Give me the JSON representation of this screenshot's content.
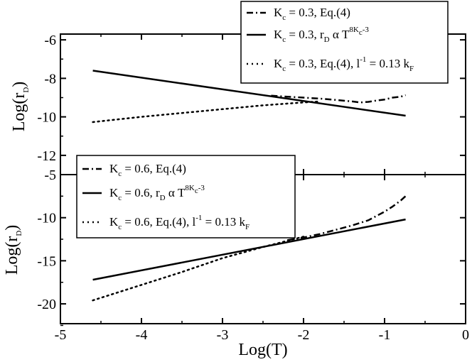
{
  "chart_data": [
    {
      "type": "line",
      "panel": "top",
      "ylabel": "Log(r_D)",
      "ylabel_parts": {
        "main": "Log(r",
        "sub": "D",
        "close": ")"
      },
      "xlim": [
        -5,
        0
      ],
      "ylim": [
        -13,
        -5.7
      ],
      "yticks": [
        -6,
        -8,
        -10,
        -12
      ],
      "ytick_labels": [
        "-6",
        "-8",
        "-10",
        "-12"
      ],
      "legend_position": "top-right",
      "series": [
        {
          "name": "K_c = 0.3, Eq.(4)",
          "legend_parts": {
            "a": "K",
            "a_sub": "c",
            "b": " = 0.3, Eq.(4)"
          },
          "style": "dash-dot",
          "x": [
            -2.4,
            -2.2,
            -2.0,
            -1.8,
            -1.6,
            -1.4,
            -1.3,
            -1.2,
            -1.1,
            -1.0,
            -0.9,
            -0.8,
            -0.74
          ],
          "y": [
            -8.9,
            -8.95,
            -9.0,
            -9.05,
            -9.12,
            -9.2,
            -9.25,
            -9.22,
            -9.15,
            -9.1,
            -9.0,
            -8.95,
            -8.87
          ]
        },
        {
          "name": "K_c = 0.3, r_D α T^(8K_c-3)",
          "legend_parts": {
            "a": "K",
            "a_sub": "c",
            "b": " = 0.3, r",
            "b_sub": "D",
            "c": " α T",
            "sup_a": "8K",
            "sup_sub": "c",
            "sup_b": "-3"
          },
          "style": "solid",
          "x": [
            -4.6,
            -0.74
          ],
          "y": [
            -7.6,
            -9.94
          ]
        },
        {
          "name": "K_c = 0.3, Eq.(4), l^-1 = 0.13 k_F",
          "legend_parts": {
            "a": "K",
            "a_sub": "c",
            "b": " = 0.3, Eq.(4), l",
            "sup": "-1",
            "c": " = 0.13 k",
            "c_sub": "F"
          },
          "style": "dotted",
          "x": [
            -4.6,
            -4.0,
            -3.5,
            -3.0,
            -2.5,
            -2.0,
            -1.8
          ],
          "y": [
            -10.27,
            -10.0,
            -9.8,
            -9.6,
            -9.4,
            -9.25,
            -9.2
          ]
        }
      ]
    },
    {
      "type": "line",
      "panel": "bottom",
      "xlabel": "Log(T)",
      "ylabel": "Log(r_D)",
      "ylabel_parts": {
        "main": "Log(r",
        "sub": "D",
        "close": ")"
      },
      "xlim": [
        -5,
        0
      ],
      "ylim": [
        -22.3,
        -5
      ],
      "xticks": [
        -5,
        -4,
        -3,
        -2,
        -1,
        0
      ],
      "xtick_labels": [
        "-5",
        "-4",
        "-3",
        "-2",
        "-1",
        "0"
      ],
      "yticks": [
        -5,
        -10,
        -15,
        -20
      ],
      "ytick_labels": [
        "-5",
        "-10",
        "-15",
        "-20"
      ],
      "legend_position": "top-left",
      "series": [
        {
          "name": "K_c = 0.6, Eq.(4)",
          "legend_parts": {
            "a": "K",
            "a_sub": "c",
            "b": " = 0.6, Eq.(4)"
          },
          "style": "dash-dot",
          "x": [
            -2.2,
            -2.0,
            -1.8,
            -1.6,
            -1.4,
            -1.2,
            -1.0,
            -0.9,
            -0.8,
            -0.74
          ],
          "y": [
            -12.6,
            -12.3,
            -11.9,
            -11.4,
            -10.9,
            -10.3,
            -9.3,
            -8.7,
            -8.0,
            -7.5
          ]
        },
        {
          "name": "K_c = 0.6, r_D α T^(8K_c-3)",
          "legend_parts": {
            "a": "K",
            "a_sub": "c",
            "b": " = 0.6, r",
            "b_sub": "D",
            "c": "  α  T",
            "sup_a": "8K",
            "sup_sub": "c",
            "sup_b": "-3"
          },
          "style": "solid",
          "x": [
            -4.6,
            -0.74
          ],
          "y": [
            -17.2,
            -10.2
          ]
        },
        {
          "name": "K_c = 0.6, Eq.(4), l^-1 = 0.13 k_F",
          "legend_parts": {
            "a": "K",
            "a_sub": "c",
            "b": " = 0.6, Eq.(4), l",
            "sup": "-1",
            "c": " = 0.13 k",
            "c_sub": "F"
          },
          "style": "dotted",
          "x": [
            -4.6,
            -4.0,
            -3.5,
            -3.0,
            -2.5,
            -2.0
          ],
          "y": [
            -19.6,
            -17.8,
            -16.3,
            -14.7,
            -13.4,
            -12.2
          ]
        }
      ]
    }
  ]
}
